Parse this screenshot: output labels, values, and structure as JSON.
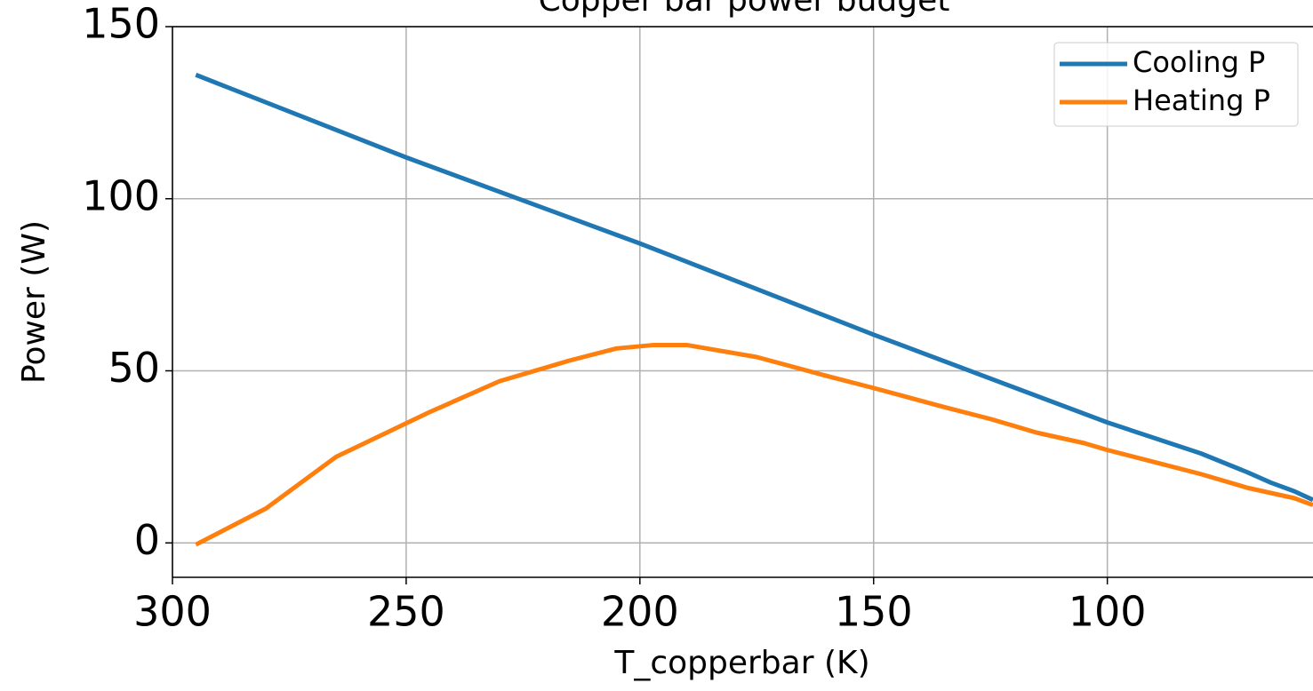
{
  "chart_data": {
    "type": "line",
    "title": "Copper bar power budget",
    "xlabel": "T_copperbar (K)",
    "ylabel": "Power (W)",
    "xlim": [
      300,
      56
    ],
    "xticks": [
      300,
      250,
      200,
      150,
      100
    ],
    "ylim": [
      -10,
      150
    ],
    "yticks": [
      0,
      50,
      100,
      150
    ],
    "grid": true,
    "legend": "upper right",
    "series": [
      {
        "name": "Cooling P",
        "color": "#1f77b4",
        "x": [
          295,
          250,
          200,
          150,
          100,
          80,
          70,
          65,
          60,
          56
        ],
        "values": [
          136,
          112,
          87,
          60.5,
          35,
          26,
          20.5,
          17.5,
          15,
          12.5
        ]
      },
      {
        "name": "Heating P",
        "color": "#ff7f0e",
        "x": [
          295,
          280,
          265,
          245,
          230,
          215,
          205,
          197,
          190,
          175,
          160,
          150,
          135,
          125,
          115,
          105,
          100,
          90,
          80,
          70,
          60,
          56
        ],
        "values": [
          -0.5,
          10,
          25,
          38,
          47,
          53,
          56.5,
          57.5,
          57.5,
          54,
          48.5,
          45,
          39.5,
          36,
          32,
          29,
          27,
          23.5,
          20,
          16,
          13,
          11
        ]
      }
    ]
  }
}
